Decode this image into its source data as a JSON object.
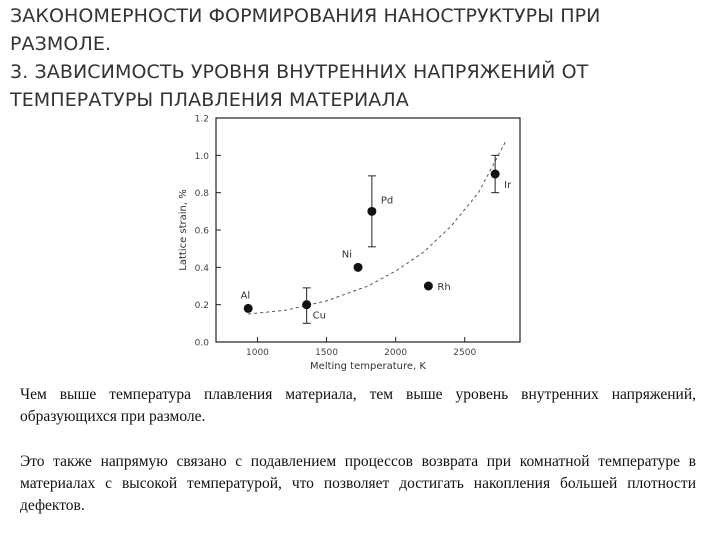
{
  "slide": {
    "title_lines": [
      "ЗАКОНОМЕРНОСТИ ФОРМИРОВАНИЯ НАНОСТРУКТУРЫ ПРИ",
      "РАЗМОЛЕ.",
      "3. ЗАВИСИМОСТЬ УРОВНЯ ВНУТРЕННИХ НАПРЯЖЕНИЙ ОТ",
      "ТЕМПЕРАТУРЫ ПЛАВЛЕНИЯ МАТЕРИАЛА"
    ],
    "paragraphs": [
      "Чем выше температура плавления материала, тем выше уровень внутренних напряжений, образующихся при размоле.",
      "Это также напрямую связано с подавлением процессов возврата при комнатной температуре в материалах с высокой температурой, что позволяет достигать накопления большей плотности дефектов."
    ]
  },
  "chart_data": {
    "type": "scatter",
    "xlabel": "Melting temperature, K",
    "ylabel": "Lattice strain, %",
    "xlim": [
      700,
      2900
    ],
    "ylim": [
      0.0,
      1.2
    ],
    "x_ticks": [
      1000,
      1500,
      2000,
      2500
    ],
    "y_ticks": [
      "0.0",
      "0.2",
      "0.4",
      "0.6",
      "0.8",
      "1.0",
      "1.2"
    ],
    "grid": false,
    "points": [
      {
        "label": "Al",
        "x": 933,
        "y": 0.18
      },
      {
        "label": "Cu",
        "x": 1356,
        "y": 0.2,
        "err_low": 0.1,
        "err_high": 0.29
      },
      {
        "label": "Ni",
        "x": 1728,
        "y": 0.4
      },
      {
        "label": "Pd",
        "x": 1828,
        "y": 0.7,
        "err_low": 0.51,
        "err_high": 0.89
      },
      {
        "label": "Rh",
        "x": 2237,
        "y": 0.3
      },
      {
        "label": "Ir",
        "x": 2720,
        "y": 0.9,
        "err_low": 0.8,
        "err_high": 1.0
      }
    ],
    "trend": {
      "style": "dashed",
      "x": [
        933,
        1200,
        1500,
        1800,
        2000,
        2200,
        2400,
        2600,
        2800
      ],
      "y": [
        0.15,
        0.17,
        0.22,
        0.3,
        0.38,
        0.48,
        0.62,
        0.8,
        1.08
      ]
    }
  }
}
